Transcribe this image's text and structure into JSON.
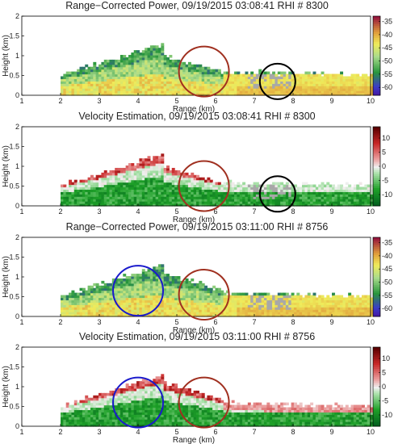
{
  "chart_data": [
    {
      "type": "heatmap",
      "title": "Range−Corrected Power, 09/19/2015 03:08:41 RHI # 8300",
      "xlabel": "Range (km)",
      "ylabel": "Height (km)",
      "xlim": [
        1,
        10
      ],
      "ylim": [
        0,
        2
      ],
      "xticks": [
        "1",
        "2",
        "3",
        "4",
        "5",
        "6",
        "7",
        "8",
        "9",
        "10"
      ],
      "yticks": [
        "0",
        "0.5",
        "1",
        "1.5",
        "2"
      ],
      "colorbar": {
        "min": -63,
        "max": -33,
        "ticks": [
          "-35",
          "-40",
          "-45",
          "-50",
          "-55",
          "-60"
        ],
        "colormap": "power"
      },
      "circles": [
        {
          "x": 5.7,
          "y": 0.6,
          "color": "#a03020"
        },
        {
          "x": 7.6,
          "y": 0.35,
          "color": "#000000"
        }
      ]
    },
    {
      "type": "heatmap",
      "title": "Velocity Estimation, 09/19/2015 03:08:41 RHI # 8300",
      "xlabel": "Range (km)",
      "ylabel": "Height (km)",
      "xlim": [
        1,
        10
      ],
      "ylim": [
        0,
        2
      ],
      "xticks": [
        "1",
        "2",
        "3",
        "4",
        "5",
        "6",
        "7",
        "8",
        "9",
        "10"
      ],
      "yticks": [
        "0",
        "0.5",
        "1",
        "1.5",
        "2"
      ],
      "colorbar": {
        "min": -14,
        "max": 14,
        "ticks": [
          "10",
          "5",
          "0",
          "-5",
          "-10"
        ],
        "colormap": "velocity"
      },
      "circles": [
        {
          "x": 5.7,
          "y": 0.5,
          "color": "#a03020"
        },
        {
          "x": 7.6,
          "y": 0.3,
          "color": "#000000"
        }
      ]
    },
    {
      "type": "heatmap",
      "title": "Range−Corrected Power, 09/19/2015 03:11:00 RHI # 8756",
      "xlabel": "Range (km)",
      "ylabel": "Height (km)",
      "xlim": [
        1,
        10
      ],
      "ylim": [
        0,
        2
      ],
      "xticks": [
        "1",
        "2",
        "3",
        "4",
        "5",
        "6",
        "7",
        "8",
        "9",
        "10"
      ],
      "yticks": [
        "0",
        "0.5",
        "1",
        "1.5",
        "2"
      ],
      "colorbar": {
        "min": -63,
        "max": -33,
        "ticks": [
          "-35",
          "-40",
          "-45",
          "-50",
          "-55",
          "-60"
        ],
        "colormap": "power"
      },
      "circles": [
        {
          "x": 4.0,
          "y": 0.65,
          "color": "#1a1acc"
        },
        {
          "x": 5.7,
          "y": 0.55,
          "color": "#a03020"
        }
      ]
    },
    {
      "type": "heatmap",
      "title": "Velocity Estimation, 09/19/2015 03:11:00 RHI # 8756",
      "xlabel": "Range (km)",
      "ylabel": "Height (km)",
      "xlim": [
        1,
        10
      ],
      "ylim": [
        0,
        2
      ],
      "xticks": [
        "1",
        "2",
        "3",
        "4",
        "5",
        "6",
        "7",
        "8",
        "9",
        "10"
      ],
      "yticks": [
        "0",
        "0.5",
        "1",
        "1.5",
        "2"
      ],
      "colorbar": {
        "min": -14,
        "max": 14,
        "ticks": [
          "10",
          "5",
          "0",
          "-5",
          "-10"
        ],
        "colormap": "velocity"
      },
      "circles": [
        {
          "x": 4.0,
          "y": 0.6,
          "color": "#1a1acc"
        },
        {
          "x": 5.7,
          "y": 0.6,
          "color": "#a03020"
        }
      ]
    }
  ]
}
